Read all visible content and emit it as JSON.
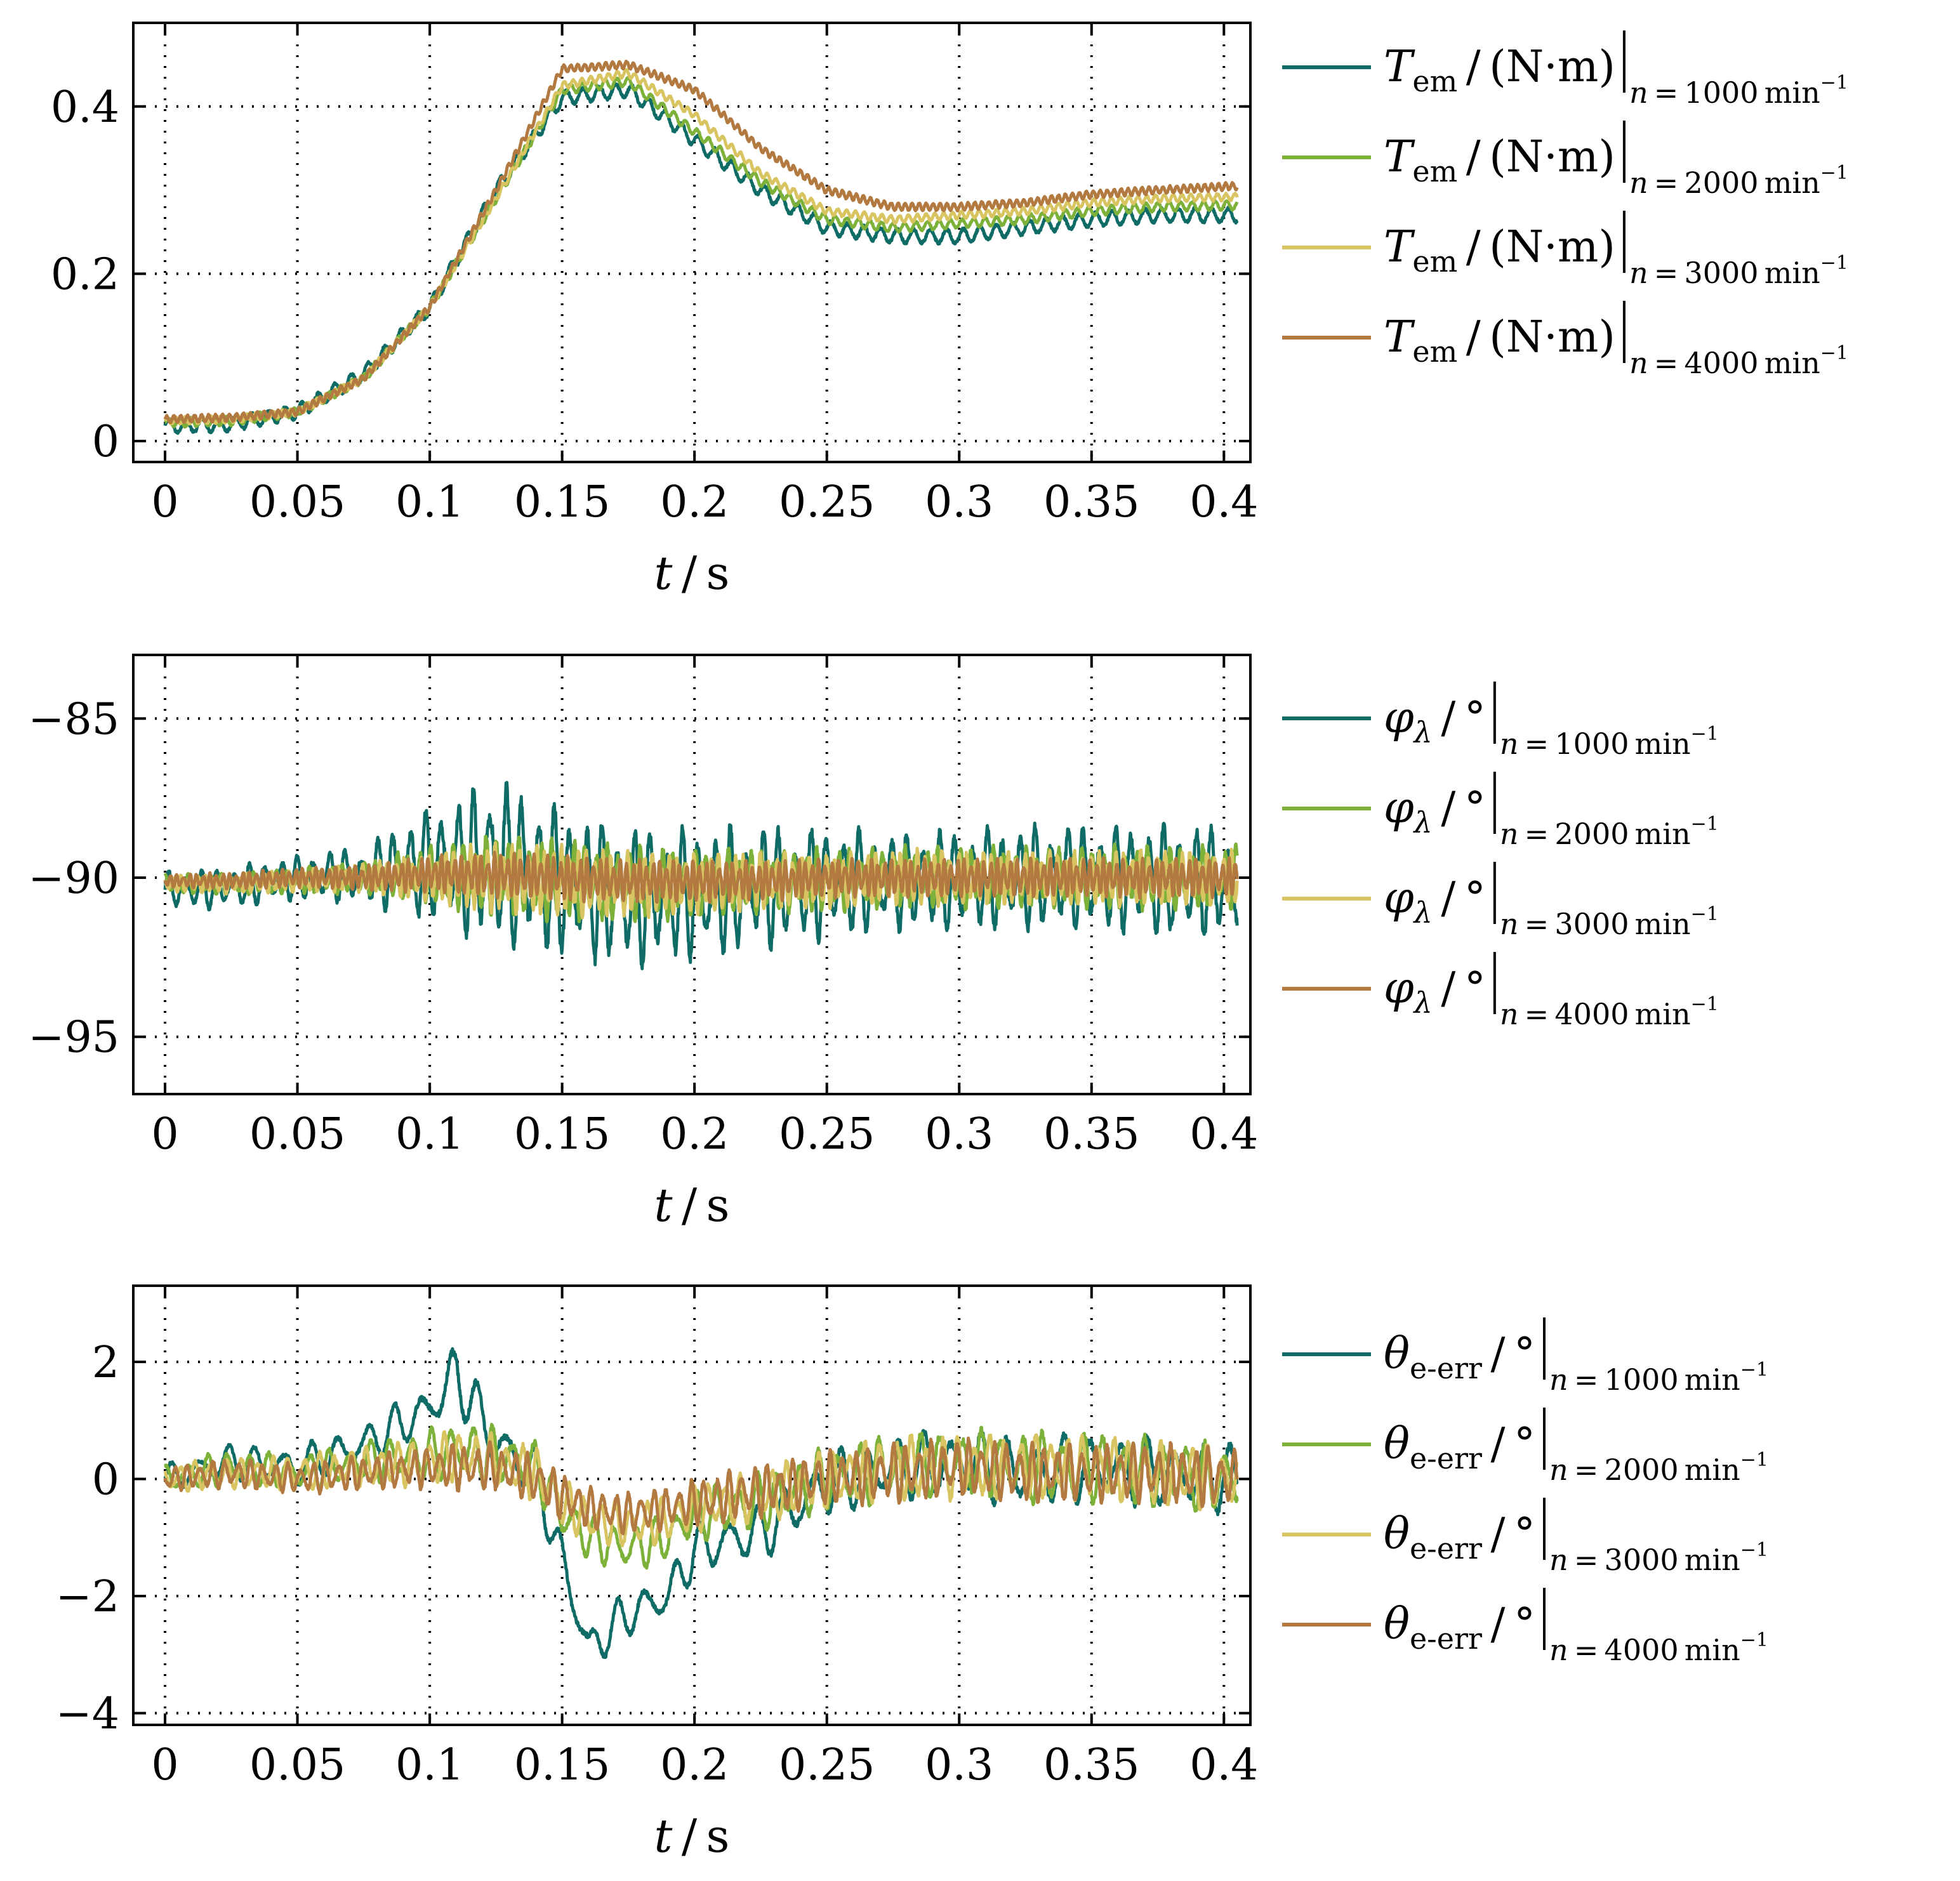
{
  "colors": {
    "n1000": "#0f6b65",
    "n2000": "#7db13a",
    "n3000": "#d9c462",
    "n4000": "#b27a40",
    "grid": "#000000",
    "axes": "#000000"
  },
  "chart_data": [
    {
      "type": "line",
      "panel": "torque",
      "xlabel_var": "t",
      "xlabel_unit": "s",
      "xlim": [
        -0.012,
        0.41
      ],
      "ylim": [
        -0.025,
        0.5
      ],
      "xticks": [
        0,
        0.05,
        0.1,
        0.15,
        0.2,
        0.25,
        0.3,
        0.35,
        0.4
      ],
      "xtick_labels": [
        "0",
        "0.05",
        "0.1",
        "0.15",
        "0.2",
        "0.25",
        "0.3",
        "0.35",
        "0.4"
      ],
      "yticks": [
        0,
        0.2,
        0.4
      ],
      "ytick_labels": [
        "0",
        "0.2",
        "0.4"
      ],
      "grid": true,
      "legend_position": "right",
      "legend_label": {
        "symbol": "T",
        "sub": "em",
        "unit": "(N·m)"
      },
      "x": [
        0,
        0.025,
        0.05,
        0.075,
        0.1,
        0.125,
        0.15,
        0.175,
        0.2,
        0.225,
        0.25,
        0.275,
        0.3,
        0.325,
        0.35,
        0.375,
        0.405
      ],
      "series": [
        {
          "name": "n = 1000 min−1",
          "speed": "1000",
          "color_key": "n1000",
          "ripple": 0.008,
          "freq": 160,
          "values": [
            0.018,
            0.02,
            0.035,
            0.08,
            0.16,
            0.3,
            0.41,
            0.42,
            0.36,
            0.3,
            0.255,
            0.245,
            0.245,
            0.255,
            0.265,
            0.27,
            0.27
          ]
        },
        {
          "name": "n = 2000 min−1",
          "speed": "2000",
          "color_key": "n2000",
          "ripple": 0.005,
          "freq": 230,
          "values": [
            0.022,
            0.024,
            0.035,
            0.075,
            0.16,
            0.29,
            0.42,
            0.43,
            0.37,
            0.31,
            0.265,
            0.255,
            0.26,
            0.265,
            0.275,
            0.28,
            0.282
          ]
        },
        {
          "name": "n = 3000 min−1",
          "speed": "3000",
          "color_key": "n3000",
          "ripple": 0.004,
          "freq": 300,
          "values": [
            0.024,
            0.026,
            0.035,
            0.075,
            0.16,
            0.29,
            0.425,
            0.44,
            0.39,
            0.32,
            0.275,
            0.265,
            0.27,
            0.275,
            0.285,
            0.29,
            0.292
          ]
        },
        {
          "name": "n = 4000 min−1",
          "speed": "4000",
          "color_key": "n4000",
          "ripple": 0.004,
          "freq": 380,
          "values": [
            0.026,
            0.028,
            0.035,
            0.075,
            0.16,
            0.3,
            0.445,
            0.45,
            0.42,
            0.35,
            0.3,
            0.28,
            0.28,
            0.285,
            0.295,
            0.3,
            0.305
          ]
        }
      ]
    },
    {
      "type": "line",
      "panel": "phi",
      "xlabel_var": "t",
      "xlabel_unit": "s",
      "xlim": [
        -0.012,
        0.41
      ],
      "ylim": [
        -96.8,
        -83
      ],
      "xticks": [
        0,
        0.05,
        0.1,
        0.15,
        0.2,
        0.25,
        0.3,
        0.35,
        0.4
      ],
      "xtick_labels": [
        "0",
        "0.05",
        "0.1",
        "0.15",
        "0.2",
        "0.25",
        "0.3",
        "0.35",
        "0.4"
      ],
      "yticks": [
        -85,
        -90,
        -95
      ],
      "ytick_labels": [
        "−85",
        "−90",
        "−95"
      ],
      "grid": true,
      "legend_position": "right",
      "legend_label": {
        "symbol": "φ",
        "sub": "λ",
        "unit": "°"
      },
      "x": [
        0,
        0.025,
        0.05,
        0.075,
        0.1,
        0.125,
        0.15,
        0.175,
        0.2,
        0.225,
        0.25,
        0.275,
        0.3,
        0.325,
        0.35,
        0.375,
        0.405
      ],
      "series": [
        {
          "name": "n = 1000 min−1",
          "speed": "1000",
          "color_key": "n1000",
          "freq": 165,
          "values": [
            -90.4,
            -90.3,
            -90,
            -89.9,
            -89.6,
            -89.5,
            -90.2,
            -90.6,
            -90.5,
            -90.3,
            -90.2,
            -90.1,
            -90.1,
            -90,
            -90,
            -90.1,
            -90.1
          ],
          "amplitude": [
            1.2,
            1.3,
            1.4,
            1.8,
            3.6,
            5.2,
            4.6,
            4.4,
            4.2,
            3.8,
            3.4,
            3.2,
            3.2,
            3.2,
            3.3,
            3.5,
            3.5
          ]
        },
        {
          "name": "n = 2000 min−1",
          "speed": "2000",
          "color_key": "n2000",
          "freq": 240,
          "values": [
            -90.2,
            -90.2,
            -90.1,
            -90,
            -89.9,
            -89.9,
            -90.1,
            -90.2,
            -90.2,
            -90.1,
            -90.1,
            -90,
            -90,
            -90,
            -90,
            -90,
            -90
          ],
          "amplitude": [
            0.6,
            0.7,
            0.8,
            1.0,
            1.8,
            2.6,
            2.6,
            2.4,
            2.2,
            2.0,
            2.0,
            1.9,
            1.9,
            1.9,
            2.0,
            2.0,
            2.0
          ]
        },
        {
          "name": "n = 3000 min−1",
          "speed": "3000",
          "color_key": "n3000",
          "freq": 320,
          "values": [
            -90.2,
            -90.2,
            -90.1,
            -90,
            -90,
            -90,
            -90.1,
            -90.2,
            -90.2,
            -90.1,
            -90.1,
            -90,
            -90,
            -90,
            -90,
            -90,
            -90
          ],
          "amplitude": [
            0.5,
            0.6,
            0.7,
            0.9,
            1.5,
            2.2,
            2.2,
            2.0,
            1.9,
            1.8,
            1.7,
            1.7,
            1.7,
            1.7,
            1.7,
            1.7,
            1.7
          ]
        },
        {
          "name": "n = 4000 min−1",
          "speed": "4000",
          "color_key": "n4000",
          "freq": 400,
          "values": [
            -90.1,
            -90.1,
            -90,
            -90,
            -89.9,
            -89.9,
            -90,
            -90.1,
            -90.1,
            -90.1,
            -90,
            -90,
            -90,
            -90,
            -90,
            -90,
            -90
          ],
          "amplitude": [
            0.4,
            0.5,
            0.6,
            0.8,
            1.1,
            1.4,
            1.4,
            1.3,
            1.3,
            1.2,
            1.2,
            1.2,
            1.2,
            1.2,
            1.2,
            1.2,
            1.2
          ]
        }
      ]
    },
    {
      "type": "line",
      "panel": "theta",
      "xlabel_var": "t",
      "xlabel_unit": "s",
      "xlim": [
        -0.012,
        0.41
      ],
      "ylim": [
        -4.2,
        3.3
      ],
      "xticks": [
        0,
        0.05,
        0.1,
        0.15,
        0.2,
        0.25,
        0.3,
        0.35,
        0.4
      ],
      "xtick_labels": [
        "0",
        "0.05",
        "0.1",
        "0.15",
        "0.2",
        "0.25",
        "0.3",
        "0.35",
        "0.4"
      ],
      "yticks": [
        2,
        0,
        -2,
        -4
      ],
      "ytick_labels": [
        "2",
        "0",
        "−2",
        "−4"
      ],
      "grid": true,
      "legend_position": "right",
      "legend_label": {
        "symbol": "θ",
        "sub": "e-err",
        "unit": "°"
      },
      "x": [
        0,
        0.025,
        0.05,
        0.075,
        0.1,
        0.11,
        0.125,
        0.14,
        0.15,
        0.16,
        0.175,
        0.19,
        0.2,
        0.225,
        0.25,
        0.275,
        0.3,
        0.325,
        0.35,
        0.375,
        0.405
      ],
      "series": [
        {
          "name": "n = 1000 min−1",
          "speed": "1000",
          "color_key": "n1000",
          "freq": 95,
          "values": [
            0,
            0.3,
            0.2,
            0.6,
            1.2,
            1.8,
            0.6,
            0.1,
            -1.4,
            -2.9,
            -2.3,
            -2.0,
            -1.2,
            -0.9,
            -0.1,
            0.2,
            0.3,
            0.1,
            0.2,
            0.1,
            0
          ],
          "amplitude": [
            0.5,
            0.6,
            0.7,
            0.7,
            0.9,
            1.1,
            1.0,
            0.9,
            0.9,
            0.8,
            0.8,
            0.8,
            0.9,
            1.0,
            1.1,
            1.1,
            1.2,
            1.2,
            1.2,
            1.2,
            1.2
          ]
        },
        {
          "name": "n = 2000 min−1",
          "speed": "2000",
          "color_key": "n2000",
          "freq": 130,
          "values": [
            0,
            0.2,
            0.1,
            0.3,
            0.4,
            0.5,
            0.4,
            0.2,
            -0.6,
            -1.0,
            -1.2,
            -1.0,
            -0.6,
            -0.4,
            0,
            0.2,
            0.3,
            0.2,
            0.2,
            0.1,
            0
          ],
          "amplitude": [
            0.5,
            0.6,
            0.6,
            0.7,
            0.9,
            1.0,
            1.0,
            0.9,
            0.9,
            0.8,
            0.8,
            0.8,
            0.9,
            1.0,
            1.1,
            1.1,
            1.1,
            1.2,
            1.2,
            1.2,
            1.2
          ]
        },
        {
          "name": "n = 3000 min−1",
          "speed": "3000",
          "color_key": "n3000",
          "freq": 170,
          "values": [
            0,
            0.1,
            0.1,
            0.2,
            0.3,
            0.4,
            0.3,
            0.1,
            -0.4,
            -0.7,
            -0.8,
            -0.7,
            -0.5,
            -0.3,
            0,
            0.2,
            0.2,
            0.2,
            0.2,
            0.1,
            0
          ],
          "amplitude": [
            0.5,
            0.5,
            0.6,
            0.7,
            0.8,
            0.9,
            0.9,
            0.9,
            0.8,
            0.8,
            0.8,
            0.8,
            0.8,
            0.9,
            1.0,
            1.1,
            1.1,
            1.1,
            1.1,
            1.1,
            1.1
          ]
        },
        {
          "name": "n = 4000 min−1",
          "speed": "4000",
          "color_key": "n4000",
          "freq": 210,
          "values": [
            0,
            0.1,
            0,
            0.1,
            0.2,
            0.2,
            0.2,
            0,
            -0.3,
            -0.5,
            -0.6,
            -0.5,
            -0.4,
            -0.2,
            0,
            0.1,
            0.2,
            0.1,
            0.1,
            0.1,
            0
          ],
          "amplitude": [
            0.4,
            0.5,
            0.5,
            0.6,
            0.7,
            0.8,
            0.8,
            0.8,
            0.8,
            0.7,
            0.7,
            0.7,
            0.8,
            0.9,
            0.9,
            1.0,
            1.0,
            1.0,
            1.0,
            1.0,
            1.0
          ]
        }
      ]
    }
  ]
}
